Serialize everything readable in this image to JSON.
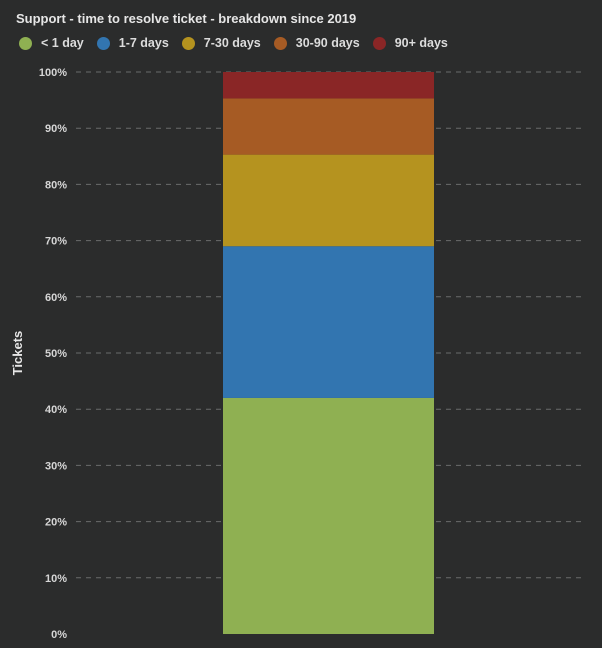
{
  "chart_data": {
    "type": "bar",
    "stacked": true,
    "title": "Support - time to resolve ticket - breakdown since 2019",
    "ylabel": "Tickets",
    "xlabel": "",
    "categories": [
      ""
    ],
    "ylim": [
      0,
      100
    ],
    "y_ticks": [
      "0%",
      "10%",
      "20%",
      "30%",
      "40%",
      "50%",
      "60%",
      "70%",
      "80%",
      "90%",
      "100%"
    ],
    "grid": true,
    "legend_position": "top-left",
    "series": [
      {
        "name": "< 1 day",
        "color": "#8fb052",
        "values": [
          42
        ]
      },
      {
        "name": "1-7 days",
        "color": "#3275b0",
        "values": [
          27
        ]
      },
      {
        "name": "7-30 days",
        "color": "#b5931f",
        "values": [
          16.3
        ]
      },
      {
        "name": "30-90 days",
        "color": "#a65b24",
        "values": [
          10
        ]
      },
      {
        "name": "90+ days",
        "color": "#8a2626",
        "values": [
          4.7
        ]
      }
    ]
  }
}
